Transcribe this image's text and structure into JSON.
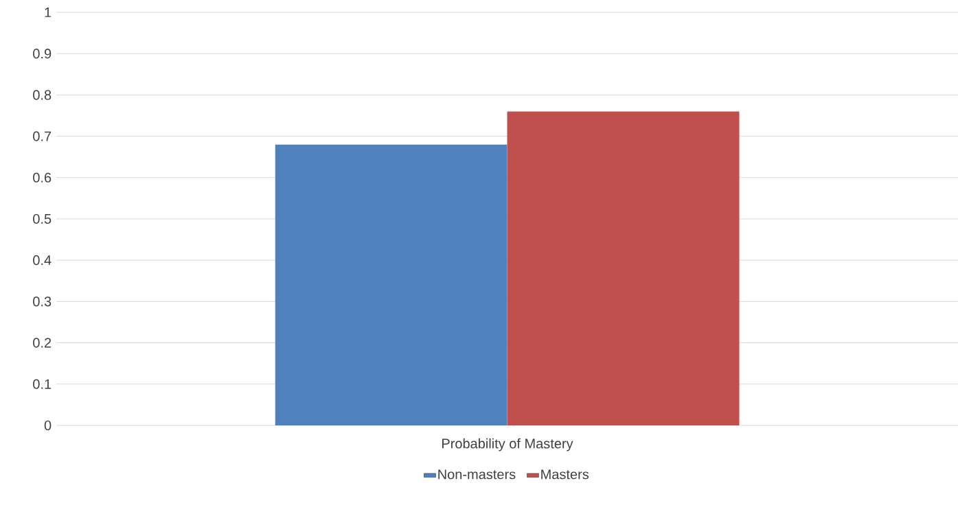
{
  "chart_data": {
    "type": "bar",
    "categories": [
      "Probability of Mastery"
    ],
    "series": [
      {
        "name": "Non-masters",
        "color": "#4f81bd",
        "values": [
          0.68
        ]
      },
      {
        "name": "Masters",
        "color": "#c0504d",
        "values": [
          0.76
        ]
      }
    ],
    "ylim": [
      0,
      1
    ],
    "yticks": [
      0,
      0.1,
      0.2,
      0.3,
      0.4,
      0.5,
      0.6,
      0.7,
      0.8,
      0.9,
      1
    ],
    "grid": "y",
    "legend": "bottom"
  }
}
